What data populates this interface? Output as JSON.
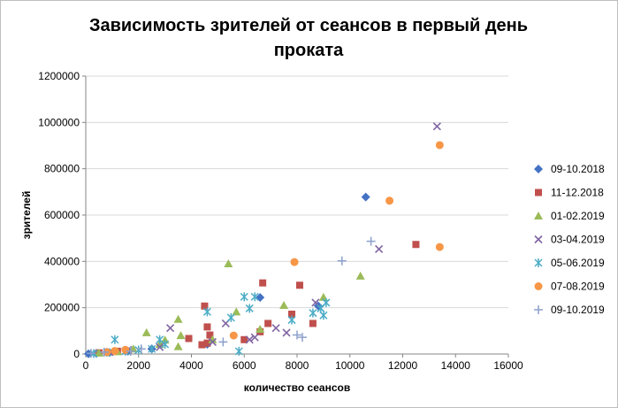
{
  "chart_data": {
    "type": "scatter",
    "title_lines": [
      "Зависимость зрителей от сеансов в первый день",
      "проката"
    ],
    "xlabel": "количество сеансов",
    "ylabel": "зрителей",
    "xlim": [
      0,
      16000
    ],
    "ylim": [
      0,
      1200000
    ],
    "x_ticks": [
      0,
      2000,
      4000,
      6000,
      8000,
      10000,
      12000,
      14000,
      16000
    ],
    "y_ticks": [
      0,
      200000,
      400000,
      600000,
      800000,
      1000000,
      1200000
    ],
    "x_tick_labels": [
      "0",
      "2000",
      "4000",
      "6000",
      "8000",
      "10000",
      "12000",
      "14000",
      "16000"
    ],
    "y_tick_labels": [
      "0",
      "200000",
      "400000",
      "600000",
      "800000",
      "1000000",
      "1200000"
    ],
    "grid": "horizontal",
    "legend_position": "right",
    "series": [
      {
        "name": "09-10.2018",
        "marker": "diamond",
        "color": "#4472C4",
        "points": [
          [
            10600,
            678000
          ],
          [
            8800,
            208000
          ],
          [
            6600,
            244000
          ],
          [
            4600,
            42000
          ],
          [
            2500,
            22000
          ],
          [
            1600,
            12000
          ],
          [
            900,
            6000
          ],
          [
            400,
            3000
          ],
          [
            100,
            1000
          ]
        ]
      },
      {
        "name": "11-12.2018",
        "marker": "square",
        "color": "#C0504D",
        "points": [
          [
            12500,
            473000
          ],
          [
            8100,
            297000
          ],
          [
            6700,
            307000
          ],
          [
            7800,
            172000
          ],
          [
            8600,
            132000
          ],
          [
            6900,
            132000
          ],
          [
            6600,
            96000
          ],
          [
            6000,
            62000
          ],
          [
            4500,
            207000
          ],
          [
            4600,
            117000
          ],
          [
            4700,
            82000
          ],
          [
            4600,
            47000
          ],
          [
            3900,
            67000
          ],
          [
            4400,
            40000
          ],
          [
            1200,
            12000
          ],
          [
            500,
            5000
          ]
        ]
      },
      {
        "name": "01-02.2019",
        "marker": "triangle",
        "color": "#9BBB59",
        "points": [
          [
            5400,
            390000
          ],
          [
            10400,
            337000
          ],
          [
            9000,
            245000
          ],
          [
            7500,
            210000
          ],
          [
            5700,
            182000
          ],
          [
            3500,
            150000
          ],
          [
            2300,
            92000
          ],
          [
            6600,
            107000
          ],
          [
            4800,
            62000
          ],
          [
            3600,
            80000
          ],
          [
            3000,
            60000
          ],
          [
            2800,
            42000
          ],
          [
            1800,
            22000
          ],
          [
            3500,
            32000
          ],
          [
            1200,
            10000
          ],
          [
            500,
            5000
          ]
        ]
      },
      {
        "name": "03-04.2019",
        "marker": "x",
        "color": "#8064A2",
        "points": [
          [
            13300,
            983000
          ],
          [
            11100,
            453000
          ],
          [
            8700,
            222000
          ],
          [
            7600,
            92000
          ],
          [
            7200,
            112000
          ],
          [
            5300,
            132000
          ],
          [
            6200,
            62000
          ],
          [
            6400,
            72000
          ],
          [
            3200,
            112000
          ],
          [
            4800,
            52000
          ],
          [
            2800,
            30000
          ],
          [
            1600,
            18000
          ],
          [
            900,
            8000
          ]
        ]
      },
      {
        "name": "05-06.2019",
        "marker": "star",
        "color": "#4BACC6",
        "points": [
          [
            9100,
            222000
          ],
          [
            8900,
            197000
          ],
          [
            8600,
            177000
          ],
          [
            6000,
            247000
          ],
          [
            6400,
            247000
          ],
          [
            6200,
            197000
          ],
          [
            5500,
            157000
          ],
          [
            4600,
            182000
          ],
          [
            7800,
            147000
          ],
          [
            9000,
            167000
          ],
          [
            5800,
            12000
          ],
          [
            3000,
            42000
          ],
          [
            2800,
            62000
          ],
          [
            1100,
            62000
          ],
          [
            2500,
            22000
          ],
          [
            2000,
            17000
          ],
          [
            1500,
            12000
          ],
          [
            800,
            7000
          ],
          [
            300,
            2000
          ]
        ]
      },
      {
        "name": "07-08.2019",
        "marker": "circle",
        "color": "#F79646",
        "points": [
          [
            13400,
            902000
          ],
          [
            11500,
            662000
          ],
          [
            13400,
            462000
          ],
          [
            7900,
            397000
          ],
          [
            5600,
            80000
          ],
          [
            1500,
            18000
          ],
          [
            1100,
            13000
          ],
          [
            800,
            8000
          ]
        ]
      },
      {
        "name": "09-10.2019",
        "marker": "plus",
        "color": "#8DA0CB",
        "points": [
          [
            10800,
            487000
          ],
          [
            9700,
            402000
          ],
          [
            8000,
            82000
          ],
          [
            5200,
            52000
          ],
          [
            8200,
            72000
          ],
          [
            2100,
            22000
          ],
          [
            1700,
            12000
          ],
          [
            700,
            8000
          ],
          [
            200,
            3000
          ]
        ]
      }
    ]
  }
}
